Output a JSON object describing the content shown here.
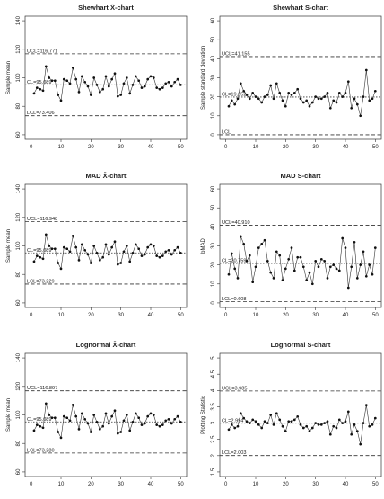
{
  "chart_data": [
    {
      "type": "line",
      "title": "Shewhart X̄-chart",
      "ylabel": "Sample mean",
      "xlim": [
        0,
        50
      ],
      "ylim": [
        60,
        140
      ],
      "xticks": [
        0,
        10,
        20,
        30,
        40,
        50
      ],
      "yticks": [
        60,
        80,
        100,
        120,
        140
      ],
      "control_limits": [
        {
          "label": "UCL=116.771",
          "value": 116.771,
          "style": "dashed"
        },
        {
          "label": "CL=95.089",
          "value": 95.089,
          "style": "dotted"
        },
        {
          "label": "LCL=73.406",
          "value": 73.406,
          "style": "dashed"
        }
      ],
      "x": [
        1,
        2,
        3,
        4,
        5,
        6,
        7,
        8,
        9,
        10,
        11,
        12,
        13,
        14,
        15,
        16,
        17,
        18,
        19,
        20,
        21,
        22,
        23,
        24,
        25,
        26,
        27,
        28,
        29,
        30,
        31,
        32,
        33,
        34,
        35,
        36,
        37,
        38,
        39,
        40,
        41,
        42,
        43,
        44,
        45,
        46,
        47,
        48,
        49,
        50
      ],
      "y": [
        89,
        93,
        92,
        91,
        108,
        100,
        98,
        98,
        88,
        84,
        99,
        98,
        96,
        107,
        99,
        90,
        101,
        97,
        94,
        88,
        100,
        95,
        90,
        92,
        101,
        94,
        99,
        103,
        87,
        88,
        96,
        100,
        89,
        95,
        101,
        98,
        93,
        94,
        99,
        101,
        100,
        93,
        92,
        93,
        96,
        97,
        94,
        97,
        99,
        95
      ]
    },
    {
      "type": "line",
      "title": "Shewhart S-chart",
      "ylabel": "Sample standard deviation",
      "xlim": [
        0,
        50
      ],
      "ylim": [
        0,
        60
      ],
      "xticks": [
        0,
        10,
        20,
        30,
        40,
        50
      ],
      "yticks": [
        0,
        10,
        20,
        30,
        40,
        50,
        60
      ],
      "control_limits": [
        {
          "label": "UCL=41.155",
          "value": 41.155,
          "style": "dashed"
        },
        {
          "label": "CL=19.852",
          "value": 19.852,
          "style": "dotted"
        },
        {
          "label": "LCL",
          "value": 0,
          "style": "dashed"
        }
      ],
      "x": [
        1,
        2,
        3,
        4,
        5,
        6,
        7,
        8,
        9,
        10,
        11,
        12,
        13,
        14,
        15,
        16,
        17,
        18,
        19,
        20,
        21,
        22,
        23,
        24,
        25,
        26,
        27,
        28,
        29,
        30,
        31,
        32,
        33,
        34,
        35,
        36,
        37,
        38,
        39,
        40,
        41,
        42,
        43,
        44,
        45,
        46,
        47,
        48,
        49,
        50
      ],
      "y": [
        15,
        18,
        16,
        19,
        27,
        23,
        21,
        19,
        22,
        20,
        19,
        17,
        20,
        21,
        26,
        19,
        27,
        22,
        18,
        15,
        22,
        21,
        22,
        24,
        19,
        17,
        18,
        15,
        17,
        20,
        19,
        19,
        20,
        22,
        14,
        18,
        17,
        22,
        20,
        22,
        28,
        14,
        19,
        16,
        10,
        20,
        34,
        18,
        19,
        23
      ]
    },
    {
      "type": "line",
      "title": "MAD X̄-chart",
      "ylabel": "Sample mean",
      "xlim": [
        0,
        50
      ],
      "ylim": [
        60,
        140
      ],
      "xticks": [
        0,
        10,
        20,
        30,
        40,
        50
      ],
      "yticks": [
        60,
        80,
        100,
        120,
        140
      ],
      "control_limits": [
        {
          "label": "UCL=116.948",
          "value": 116.948,
          "style": "dashed"
        },
        {
          "label": "CL=95.089",
          "value": 95.089,
          "style": "dotted"
        },
        {
          "label": "LCL=73.229",
          "value": 73.229,
          "style": "dashed"
        }
      ],
      "x": [
        1,
        2,
        3,
        4,
        5,
        6,
        7,
        8,
        9,
        10,
        11,
        12,
        13,
        14,
        15,
        16,
        17,
        18,
        19,
        20,
        21,
        22,
        23,
        24,
        25,
        26,
        27,
        28,
        29,
        30,
        31,
        32,
        33,
        34,
        35,
        36,
        37,
        38,
        39,
        40,
        41,
        42,
        43,
        44,
        45,
        46,
        47,
        48,
        49,
        50
      ],
      "y": [
        89,
        93,
        92,
        91,
        108,
        100,
        98,
        98,
        88,
        84,
        99,
        98,
        96,
        107,
        99,
        90,
        101,
        97,
        94,
        88,
        100,
        95,
        90,
        92,
        101,
        94,
        99,
        103,
        87,
        88,
        96,
        100,
        89,
        95,
        101,
        98,
        93,
        94,
        99,
        101,
        100,
        93,
        92,
        93,
        96,
        97,
        94,
        97,
        99,
        95
      ]
    },
    {
      "type": "line",
      "title": "MAD S-chart",
      "ylabel": "bMAD",
      "xlim": [
        0,
        50
      ],
      "ylim": [
        0,
        60
      ],
      "xticks": [
        0,
        10,
        20,
        30,
        40,
        50
      ],
      "yticks": [
        0,
        10,
        20,
        30,
        40,
        50,
        60
      ],
      "control_limits": [
        {
          "label": "UCL=40.910",
          "value": 40.91,
          "style": "dashed"
        },
        {
          "label": "CL=20.759",
          "value": 20.759,
          "style": "dotted"
        },
        {
          "label": "LCL=0.608",
          "value": 0.608,
          "style": "dashed"
        }
      ],
      "x": [
        1,
        2,
        3,
        4,
        5,
        6,
        7,
        8,
        9,
        10,
        11,
        12,
        13,
        14,
        15,
        16,
        17,
        18,
        19,
        20,
        21,
        22,
        23,
        24,
        25,
        26,
        27,
        28,
        29,
        30,
        31,
        32,
        33,
        34,
        35,
        36,
        37,
        38,
        39,
        40,
        41,
        42,
        43,
        44,
        45,
        46,
        47,
        48,
        49,
        50
      ],
      "y": [
        15,
        26,
        18,
        13,
        35,
        31,
        22,
        25,
        11,
        19,
        29,
        31,
        33,
        22,
        16,
        13,
        27,
        25,
        12,
        18,
        23,
        29,
        17,
        24,
        24,
        19,
        12,
        16,
        10,
        22,
        19,
        23,
        22,
        13,
        19,
        20,
        18,
        17,
        34,
        29,
        8,
        19,
        32,
        13,
        20,
        27,
        14,
        20,
        15,
        29
      ]
    },
    {
      "type": "line",
      "title": "Lognormal X̄-chart",
      "ylabel": "Sample mean",
      "xlim": [
        0,
        50
      ],
      "ylim": [
        60,
        140
      ],
      "xticks": [
        0,
        10,
        20,
        30,
        40,
        50
      ],
      "yticks": [
        60,
        80,
        100,
        120,
        140
      ],
      "control_limits": [
        {
          "label": "UCL=116.897",
          "value": 116.897,
          "style": "dashed"
        },
        {
          "label": "CL=95.089",
          "value": 95.089,
          "style": "dotted"
        },
        {
          "label": "LCL=73.280",
          "value": 73.28,
          "style": "dashed"
        }
      ],
      "x": [
        1,
        2,
        3,
        4,
        5,
        6,
        7,
        8,
        9,
        10,
        11,
        12,
        13,
        14,
        15,
        16,
        17,
        18,
        19,
        20,
        21,
        22,
        23,
        24,
        25,
        26,
        27,
        28,
        29,
        30,
        31,
        32,
        33,
        34,
        35,
        36,
        37,
        38,
        39,
        40,
        41,
        42,
        43,
        44,
        45,
        46,
        47,
        48,
        49,
        50
      ],
      "y": [
        89,
        93,
        92,
        91,
        108,
        100,
        98,
        98,
        88,
        84,
        99,
        98,
        96,
        107,
        99,
        90,
        101,
        97,
        94,
        88,
        100,
        95,
        90,
        92,
        101,
        94,
        99,
        103,
        87,
        88,
        96,
        100,
        89,
        95,
        101,
        98,
        93,
        94,
        99,
        101,
        100,
        93,
        92,
        93,
        96,
        97,
        94,
        97,
        99,
        95
      ]
    },
    {
      "type": "line",
      "title": "Lognormal S-chart",
      "ylabel": "Plotting Statistic",
      "xlim": [
        0,
        50
      ],
      "ylim": [
        1.5,
        5.0
      ],
      "xticks": [
        0,
        10,
        20,
        30,
        40,
        50
      ],
      "yticks": [
        1.5,
        2.0,
        2.5,
        3.0,
        3.5,
        4.0,
        4.5,
        5.0
      ],
      "control_limits": [
        {
          "label": "UCL=3.985",
          "value": 3.985,
          "style": "dashed"
        },
        {
          "label": "CL=2.994",
          "value": 2.994,
          "style": "dotted"
        },
        {
          "label": "LCL=2.003",
          "value": 2.003,
          "style": "dashed"
        }
      ],
      "x": [
        1,
        2,
        3,
        4,
        5,
        6,
        7,
        8,
        9,
        10,
        11,
        12,
        13,
        14,
        15,
        16,
        17,
        18,
        19,
        20,
        21,
        22,
        23,
        24,
        25,
        26,
        27,
        28,
        29,
        30,
        31,
        32,
        33,
        34,
        35,
        36,
        37,
        38,
        39,
        40,
        41,
        42,
        43,
        44,
        45,
        46,
        47,
        48,
        49,
        50
      ],
      "y": [
        2.8,
        2.95,
        2.85,
        2.9,
        3.3,
        3.15,
        3.05,
        3.0,
        3.1,
        3.05,
        2.95,
        2.85,
        3.05,
        3.0,
        3.25,
        2.95,
        3.3,
        3.1,
        2.9,
        2.75,
        3.05,
        3.05,
        3.1,
        3.2,
        2.95,
        2.85,
        2.9,
        2.75,
        2.85,
        3.0,
        2.95,
        2.95,
        3.0,
        3.05,
        2.65,
        2.9,
        2.85,
        3.1,
        3.0,
        3.05,
        3.35,
        2.65,
        2.95,
        2.75,
        2.35,
        3.0,
        3.55,
        2.9,
        2.95,
        3.15
      ]
    }
  ]
}
